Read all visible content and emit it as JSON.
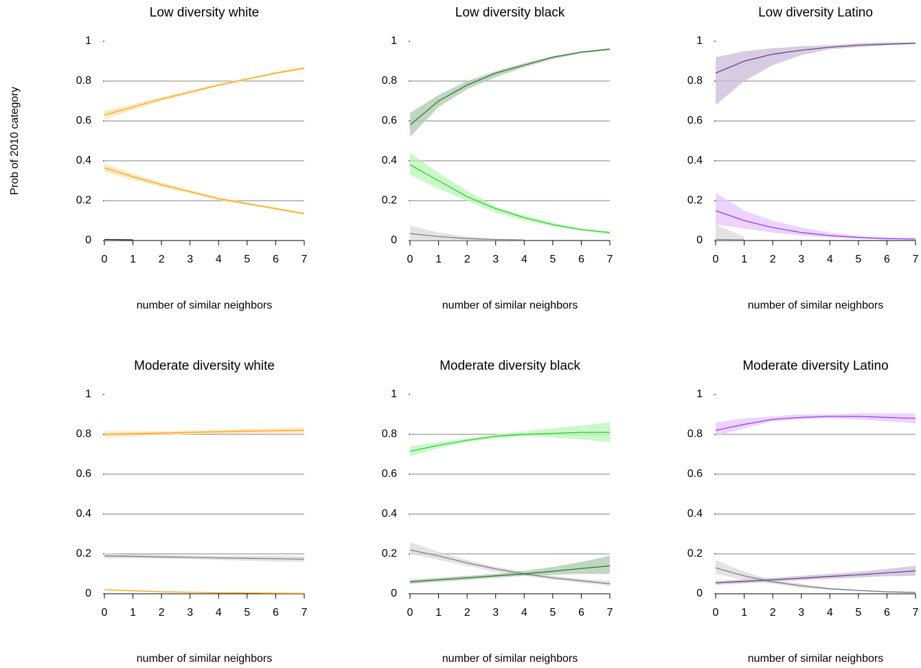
{
  "chart_data": [
    {
      "type": "line",
      "title": "Low diversity white",
      "xlabel": "number of similar neighbors",
      "ylabel": "Prob of 2010 category",
      "x": [
        0,
        1,
        2,
        3,
        4,
        5,
        6,
        7
      ],
      "xlim": [
        0,
        7
      ],
      "xticks": [
        0,
        1,
        2,
        3,
        4,
        5,
        6,
        7
      ],
      "ylim": [
        0,
        1
      ],
      "yticks": [
        0,
        0.2,
        0.4,
        0.6,
        0.8,
        1
      ],
      "grid": true,
      "series": [
        {
          "color": "#ffa000",
          "band_color": "#fde0b0",
          "values": [
            0.63,
            0.67,
            0.71,
            0.745,
            0.78,
            0.81,
            0.84,
            0.865
          ],
          "lower": [
            0.61,
            0.655,
            0.7,
            0.738,
            0.773,
            0.804,
            0.834,
            0.858
          ],
          "upper": [
            0.65,
            0.685,
            0.72,
            0.752,
            0.787,
            0.816,
            0.846,
            0.872
          ]
        },
        {
          "color": "#ffa000",
          "band_color": "#fde0b0",
          "values": [
            0.365,
            0.32,
            0.28,
            0.245,
            0.21,
            0.185,
            0.16,
            0.135
          ],
          "lower": [
            0.345,
            0.305,
            0.268,
            0.236,
            0.203,
            0.179,
            0.154,
            0.129
          ],
          "upper": [
            0.385,
            0.335,
            0.292,
            0.254,
            0.217,
            0.191,
            0.166,
            0.141
          ]
        },
        {
          "color": "#000000",
          "band_color": "#d9d9d9",
          "values": [
            0.005,
            0.003,
            null,
            null,
            null,
            null,
            null,
            null
          ],
          "lower": [
            0,
            0,
            null,
            null,
            null,
            null,
            null,
            null
          ],
          "upper": [
            0.01,
            0.008,
            null,
            null,
            null,
            null,
            null,
            null
          ]
        }
      ]
    },
    {
      "type": "line",
      "title": "Low diversity black",
      "xlabel": "number of similar neighbors",
      "x": [
        0,
        1,
        2,
        3,
        4,
        5,
        6,
        7
      ],
      "xlim": [
        0,
        7
      ],
      "xticks": [
        0,
        1,
        2,
        3,
        4,
        5,
        6,
        7
      ],
      "ylim": [
        0,
        1
      ],
      "yticks": [
        0,
        0.2,
        0.4,
        0.6,
        0.8,
        1
      ],
      "grid": true,
      "series": [
        {
          "color": "#2e6b2e",
          "band_color": "#a9c9a9",
          "values": [
            0.58,
            0.7,
            0.78,
            0.84,
            0.88,
            0.92,
            0.945,
            0.96
          ],
          "lower": [
            0.52,
            0.67,
            0.76,
            0.82,
            0.87,
            0.91,
            0.94,
            0.955
          ],
          "upper": [
            0.64,
            0.73,
            0.8,
            0.85,
            0.89,
            0.925,
            0.95,
            0.965
          ]
        },
        {
          "color": "#22cc22",
          "band_color": "#b8f5b8",
          "values": [
            0.38,
            0.3,
            0.22,
            0.16,
            0.115,
            0.08,
            0.055,
            0.04
          ],
          "lower": [
            0.33,
            0.26,
            0.2,
            0.14,
            0.1,
            0.07,
            0.05,
            0.03
          ],
          "upper": [
            0.44,
            0.34,
            0.25,
            0.17,
            0.125,
            0.09,
            0.06,
            0.045
          ]
        },
        {
          "color": "#777777",
          "band_color": "#d9d9d9",
          "values": [
            0.035,
            0.02,
            0.01,
            0.005,
            0.003,
            null,
            null,
            null
          ],
          "lower": [
            0,
            0,
            0,
            0,
            0,
            null,
            null,
            null
          ],
          "upper": [
            0.075,
            0.04,
            0.02,
            0.01,
            0.005,
            null,
            null,
            null
          ]
        }
      ]
    },
    {
      "type": "line",
      "title": "Low diversity Latino",
      "xlabel": "number of similar neighbors",
      "x": [
        0,
        1,
        2,
        3,
        4,
        5,
        6,
        7
      ],
      "xlim": [
        0,
        7
      ],
      "xticks": [
        0,
        1,
        2,
        3,
        4,
        5,
        6,
        7
      ],
      "ylim": [
        0,
        1
      ],
      "yticks": [
        0,
        0.2,
        0.4,
        0.6,
        0.8,
        1
      ],
      "grid": true,
      "series": [
        {
          "color": "#5c3c7c",
          "band_color": "#cbbbd9",
          "values": [
            0.84,
            0.9,
            0.935,
            0.955,
            0.97,
            0.98,
            0.985,
            0.99
          ],
          "lower": [
            0.68,
            0.8,
            0.88,
            0.93,
            0.96,
            0.97,
            0.98,
            0.985
          ],
          "upper": [
            0.92,
            0.95,
            0.965,
            0.975,
            0.98,
            0.99,
            0.995,
            0.995
          ]
        },
        {
          "color": "#9933ee",
          "band_color": "#e5c5ff",
          "values": [
            0.15,
            0.1,
            0.065,
            0.04,
            0.025,
            0.015,
            0.01,
            0.008
          ],
          "lower": [
            0.08,
            0.06,
            0.04,
            0.025,
            0.015,
            0.01,
            0.005,
            0.003
          ],
          "upper": [
            0.24,
            0.15,
            0.1,
            0.065,
            0.04,
            0.025,
            0.015,
            0.01
          ]
        },
        {
          "color": "#777777",
          "band_color": "#d9d9d9",
          "values": [
            0.005,
            0.003,
            null,
            null,
            null,
            null,
            null,
            null
          ],
          "lower": [
            0,
            0,
            null,
            null,
            null,
            null,
            null,
            null
          ],
          "upper": [
            0.08,
            0.02,
            null,
            null,
            null,
            null,
            null,
            null
          ]
        }
      ]
    },
    {
      "type": "line",
      "title": "Moderate diversity white",
      "xlabel": "number of similar neighbors",
      "x": [
        0,
        1,
        2,
        3,
        4,
        5,
        6,
        7
      ],
      "xlim": [
        0,
        7
      ],
      "xticks": [
        0,
        1,
        2,
        3,
        4,
        5,
        6,
        7
      ],
      "ylim": [
        0,
        1
      ],
      "yticks": [
        0,
        0.2,
        0.4,
        0.6,
        0.8,
        1
      ],
      "grid": true,
      "series": [
        {
          "color": "#ffa000",
          "band_color": "#fde0b0",
          "values": [
            0.8,
            0.803,
            0.806,
            0.81,
            0.813,
            0.816,
            0.818,
            0.82
          ],
          "lower": [
            0.785,
            0.791,
            0.796,
            0.8,
            0.803,
            0.805,
            0.806,
            0.806
          ],
          "upper": [
            0.815,
            0.815,
            0.816,
            0.82,
            0.823,
            0.827,
            0.83,
            0.834
          ]
        },
        {
          "color": "#777777",
          "band_color": "#d9d9d9",
          "values": [
            0.19,
            0.188,
            0.185,
            0.183,
            0.18,
            0.178,
            0.176,
            0.174
          ],
          "lower": [
            0.178,
            0.178,
            0.176,
            0.174,
            0.17,
            0.166,
            0.162,
            0.16
          ],
          "upper": [
            0.202,
            0.198,
            0.194,
            0.192,
            0.19,
            0.19,
            0.19,
            0.188
          ]
        },
        {
          "color": "#ffa000",
          "band_color": "#fde0b0",
          "values": [
            0.02,
            0.015,
            0.01,
            0.008,
            0.005,
            0.004,
            0.003,
            0.002
          ],
          "lower": [
            0.017,
            0.012,
            0.008,
            0.006,
            0.003,
            0.002,
            0.001,
            0.001
          ],
          "upper": [
            0.023,
            0.018,
            0.012,
            0.01,
            0.007,
            0.006,
            0.005,
            0.004
          ]
        }
      ]
    },
    {
      "type": "line",
      "title": "Moderate diversity black",
      "xlabel": "number of similar neighbors",
      "x": [
        0,
        1,
        2,
        3,
        4,
        5,
        6,
        7
      ],
      "xlim": [
        0,
        7
      ],
      "xticks": [
        0,
        1,
        2,
        3,
        4,
        5,
        6,
        7
      ],
      "ylim": [
        0,
        1
      ],
      "yticks": [
        0,
        0.2,
        0.4,
        0.6,
        0.8,
        1
      ],
      "grid": true,
      "series": [
        {
          "color": "#22cc22",
          "band_color": "#b8f5b8",
          "values": [
            0.715,
            0.745,
            0.77,
            0.79,
            0.8,
            0.805,
            0.81,
            0.81
          ],
          "lower": [
            0.69,
            0.73,
            0.76,
            0.78,
            0.79,
            0.785,
            0.775,
            0.76
          ],
          "upper": [
            0.74,
            0.76,
            0.78,
            0.8,
            0.815,
            0.83,
            0.845,
            0.86
          ]
        },
        {
          "color": "#777777",
          "band_color": "#d9d9d9",
          "values": [
            0.22,
            0.19,
            0.155,
            0.125,
            0.1,
            0.08,
            0.065,
            0.05
          ],
          "lower": [
            0.2,
            0.17,
            0.14,
            0.11,
            0.09,
            0.07,
            0.055,
            0.04
          ],
          "upper": [
            0.26,
            0.21,
            0.17,
            0.135,
            0.11,
            0.09,
            0.075,
            0.065
          ]
        },
        {
          "color": "#2e6b2e",
          "band_color": "#a9c9a9",
          "values": [
            0.06,
            0.07,
            0.08,
            0.09,
            0.1,
            0.113,
            0.127,
            0.14
          ],
          "lower": [
            0.05,
            0.06,
            0.07,
            0.08,
            0.09,
            0.095,
            0.1,
            0.1
          ],
          "upper": [
            0.07,
            0.08,
            0.09,
            0.1,
            0.115,
            0.135,
            0.16,
            0.19
          ]
        }
      ]
    },
    {
      "type": "line",
      "title": "Moderate diversity Latino",
      "xlabel": "number of similar neighbors",
      "x": [
        0,
        1,
        2,
        3,
        4,
        5,
        6,
        7
      ],
      "xlim": [
        0,
        7
      ],
      "xticks": [
        0,
        1,
        2,
        3,
        4,
        5,
        6,
        7
      ],
      "ylim": [
        0,
        1
      ],
      "yticks": [
        0,
        0.2,
        0.4,
        0.6,
        0.8,
        1
      ],
      "grid": true,
      "series": [
        {
          "color": "#9933ee",
          "band_color": "#e5c5ff",
          "values": [
            0.82,
            0.85,
            0.875,
            0.885,
            0.89,
            0.89,
            0.885,
            0.88
          ],
          "lower": [
            0.79,
            0.83,
            0.865,
            0.875,
            0.88,
            0.875,
            0.865,
            0.855
          ],
          "upper": [
            0.86,
            0.88,
            0.89,
            0.9,
            0.9,
            0.905,
            0.905,
            0.905
          ]
        },
        {
          "color": "#777777",
          "band_color": "#d9d9d9",
          "values": [
            0.13,
            0.09,
            0.06,
            0.04,
            0.025,
            0.017,
            0.01,
            0.007
          ],
          "lower": [
            0.1,
            0.07,
            0.05,
            0.03,
            0.02,
            0.012,
            0.007,
            0.004
          ],
          "upper": [
            0.17,
            0.11,
            0.07,
            0.05,
            0.03,
            0.02,
            0.013,
            0.01
          ]
        },
        {
          "color": "#5c3c7c",
          "band_color": "#cbbbd9",
          "values": [
            0.055,
            0.062,
            0.07,
            0.078,
            0.087,
            0.095,
            0.105,
            0.115
          ],
          "lower": [
            0.045,
            0.052,
            0.06,
            0.068,
            0.075,
            0.082,
            0.088,
            0.09
          ],
          "upper": [
            0.065,
            0.072,
            0.08,
            0.09,
            0.1,
            0.11,
            0.125,
            0.14
          ]
        }
      ]
    }
  ]
}
